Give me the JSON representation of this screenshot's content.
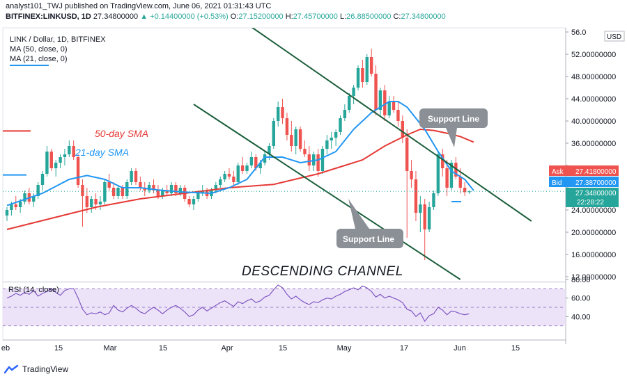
{
  "header": {
    "line1": "analyst101_TWJ published on TradingView.com, June 06, 2021 01:31:43 UTC",
    "symbol": "BITFINEX:LINKUSD, 1D",
    "last": "27.34800000",
    "change": "+0.14400000 (+0.53%)",
    "o_label": "O:",
    "o": "27.15200000",
    "h_label": "H:",
    "h": "27.45700000",
    "l_label": "L:",
    "l": "26.88500000",
    "c_label": "C:",
    "c": "27.34800000"
  },
  "legend": {
    "title": "LINK / Dollar, 1D, BITFINEX",
    "ma50": "MA (50, close, 0)",
    "ma21": "MA (21, close, 0)",
    "rsi": "RSI (14, close)"
  },
  "annotations": {
    "sma50": "50-day SMA",
    "sma21": "21-day SMA",
    "support_upper": "Support Line",
    "support_lower": "Support Line",
    "channel": "DESCENDING CHANNEL"
  },
  "price_tags": {
    "ask_label": "Ask",
    "ask": "27.41800000",
    "bid_label": "Bid",
    "bid": "27.38700000",
    "last": "27.34800000",
    "countdown": "22:28:22",
    "currency": "USD"
  },
  "footer": {
    "brand": "TradingView"
  },
  "colors": {
    "up": "#26a69a",
    "down": "#ef5350",
    "ma50": "#e53935",
    "ma21": "#2196f3",
    "rsi": "#7e57c2",
    "rsi_band": "#e9dcf7",
    "trend": "#1b5e3b",
    "callout": "#8a9096"
  },
  "chart_data": [
    {
      "type": "candlestick",
      "title": "LINK / Dollar, 1D, BITFINEX",
      "ylim": [
        12,
        56
      ],
      "y_ticks": [
        12,
        16,
        20,
        24,
        28,
        32,
        36,
        40,
        44,
        48,
        52,
        56
      ],
      "y_tick_labels": [
        "12.00000000",
        "16.00000000",
        "20.00000000",
        "24.00000000",
        "",
        "",
        "36.00000000",
        "40.00000000",
        "44.00000000",
        "48.00000000",
        "52.00000000",
        "56.0"
      ],
      "x_ticks": [
        "eb",
        "15",
        "Mar",
        "15",
        "Apr",
        "15",
        "May",
        "17",
        "Jun",
        "15"
      ],
      "candles": [
        {
          "o": 23.0,
          "h": 24.5,
          "l": 22.0,
          "c": 24.0
        },
        {
          "o": 24.0,
          "h": 25.5,
          "l": 23.0,
          "c": 25.0
        },
        {
          "o": 25.0,
          "h": 26.5,
          "l": 24.0,
          "c": 24.5
        },
        {
          "o": 24.5,
          "h": 26.0,
          "l": 23.5,
          "c": 25.5
        },
        {
          "o": 25.5,
          "h": 27.5,
          "l": 25.0,
          "c": 27.0
        },
        {
          "o": 27.0,
          "h": 28.0,
          "l": 25.0,
          "c": 25.5
        },
        {
          "o": 25.5,
          "h": 27.0,
          "l": 24.5,
          "c": 26.5
        },
        {
          "o": 26.5,
          "h": 29.0,
          "l": 26.0,
          "c": 28.5
        },
        {
          "o": 28.5,
          "h": 31.0,
          "l": 27.5,
          "c": 30.5
        },
        {
          "o": 30.5,
          "h": 35.5,
          "l": 30.0,
          "c": 34.5
        },
        {
          "o": 34.5,
          "h": 35.0,
          "l": 31.0,
          "c": 31.5
        },
        {
          "o": 31.5,
          "h": 33.0,
          "l": 30.0,
          "c": 32.5
        },
        {
          "o": 32.5,
          "h": 34.0,
          "l": 31.5,
          "c": 33.5
        },
        {
          "o": 33.5,
          "h": 35.0,
          "l": 32.0,
          "c": 34.0
        },
        {
          "o": 34.0,
          "h": 36.5,
          "l": 33.5,
          "c": 35.5
        },
        {
          "o": 35.5,
          "h": 36.5,
          "l": 33.0,
          "c": 33.5
        },
        {
          "o": 33.5,
          "h": 34.0,
          "l": 28.0,
          "c": 28.5
        },
        {
          "o": 28.5,
          "h": 29.5,
          "l": 21.0,
          "c": 26.5
        },
        {
          "o": 26.5,
          "h": 28.0,
          "l": 23.5,
          "c": 24.5
        },
        {
          "o": 24.5,
          "h": 26.5,
          "l": 23.5,
          "c": 26.0
        },
        {
          "o": 26.0,
          "h": 27.0,
          "l": 24.0,
          "c": 25.0
        },
        {
          "o": 25.0,
          "h": 26.5,
          "l": 24.0,
          "c": 25.5
        },
        {
          "o": 25.5,
          "h": 29.5,
          "l": 25.0,
          "c": 29.0
        },
        {
          "o": 29.0,
          "h": 30.5,
          "l": 27.5,
          "c": 28.0
        },
        {
          "o": 28.0,
          "h": 29.0,
          "l": 26.0,
          "c": 26.5
        },
        {
          "o": 26.5,
          "h": 28.5,
          "l": 26.0,
          "c": 28.0
        },
        {
          "o": 28.0,
          "h": 28.5,
          "l": 26.0,
          "c": 26.5
        },
        {
          "o": 26.5,
          "h": 29.5,
          "l": 26.0,
          "c": 29.0
        },
        {
          "o": 29.0,
          "h": 31.5,
          "l": 28.5,
          "c": 31.0
        },
        {
          "o": 31.0,
          "h": 31.5,
          "l": 28.5,
          "c": 29.0
        },
        {
          "o": 29.0,
          "h": 30.0,
          "l": 27.5,
          "c": 28.0
        },
        {
          "o": 28.0,
          "h": 29.0,
          "l": 26.5,
          "c": 27.5
        },
        {
          "o": 27.5,
          "h": 29.0,
          "l": 27.0,
          "c": 28.5
        },
        {
          "o": 28.5,
          "h": 29.5,
          "l": 27.0,
          "c": 27.5
        },
        {
          "o": 27.5,
          "h": 28.5,
          "l": 26.0,
          "c": 26.5
        },
        {
          "o": 26.5,
          "h": 28.0,
          "l": 26.0,
          "c": 27.5
        },
        {
          "o": 27.5,
          "h": 28.5,
          "l": 26.5,
          "c": 27.0
        },
        {
          "o": 27.0,
          "h": 29.0,
          "l": 26.5,
          "c": 28.5
        },
        {
          "o": 28.5,
          "h": 29.0,
          "l": 26.5,
          "c": 27.0
        },
        {
          "o": 27.0,
          "h": 28.5,
          "l": 26.5,
          "c": 28.0
        },
        {
          "o": 28.0,
          "h": 28.5,
          "l": 25.5,
          "c": 26.0
        },
        {
          "o": 26.0,
          "h": 26.5,
          "l": 24.5,
          "c": 25.0
        },
        {
          "o": 25.0,
          "h": 26.5,
          "l": 24.0,
          "c": 26.0
        },
        {
          "o": 26.0,
          "h": 27.5,
          "l": 25.5,
          "c": 27.0
        },
        {
          "o": 27.0,
          "h": 28.5,
          "l": 26.5,
          "c": 27.5
        },
        {
          "o": 27.5,
          "h": 28.0,
          "l": 26.0,
          "c": 26.5
        },
        {
          "o": 26.5,
          "h": 28.0,
          "l": 26.0,
          "c": 27.5
        },
        {
          "o": 27.5,
          "h": 29.0,
          "l": 27.0,
          "c": 28.5
        },
        {
          "o": 28.5,
          "h": 30.0,
          "l": 28.0,
          "c": 29.5
        },
        {
          "o": 29.5,
          "h": 31.0,
          "l": 29.0,
          "c": 30.5
        },
        {
          "o": 30.5,
          "h": 31.5,
          "l": 29.5,
          "c": 30.0
        },
        {
          "o": 30.0,
          "h": 31.0,
          "l": 28.5,
          "c": 29.0
        },
        {
          "o": 29.0,
          "h": 32.5,
          "l": 28.5,
          "c": 32.0
        },
        {
          "o": 32.0,
          "h": 33.5,
          "l": 30.5,
          "c": 31.0
        },
        {
          "o": 31.0,
          "h": 32.5,
          "l": 30.5,
          "c": 32.0
        },
        {
          "o": 32.0,
          "h": 34.5,
          "l": 31.5,
          "c": 33.5
        },
        {
          "o": 33.5,
          "h": 34.0,
          "l": 31.0,
          "c": 31.5
        },
        {
          "o": 31.5,
          "h": 33.0,
          "l": 30.5,
          "c": 32.5
        },
        {
          "o": 32.5,
          "h": 34.5,
          "l": 32.0,
          "c": 34.0
        },
        {
          "o": 34.0,
          "h": 36.0,
          "l": 33.0,
          "c": 35.5
        },
        {
          "o": 35.5,
          "h": 40.5,
          "l": 35.0,
          "c": 40.0
        },
        {
          "o": 40.0,
          "h": 43.5,
          "l": 39.0,
          "c": 42.5
        },
        {
          "o": 42.5,
          "h": 44.0,
          "l": 39.5,
          "c": 40.5
        },
        {
          "o": 40.5,
          "h": 41.5,
          "l": 36.5,
          "c": 37.5
        },
        {
          "o": 37.5,
          "h": 40.0,
          "l": 34.5,
          "c": 35.5
        },
        {
          "o": 35.5,
          "h": 39.0,
          "l": 34.0,
          "c": 38.5
        },
        {
          "o": 38.5,
          "h": 39.0,
          "l": 34.5,
          "c": 35.0
        },
        {
          "o": 35.0,
          "h": 36.5,
          "l": 33.5,
          "c": 34.0
        },
        {
          "o": 34.0,
          "h": 35.5,
          "l": 31.0,
          "c": 32.0
        },
        {
          "o": 32.0,
          "h": 34.5,
          "l": 31.0,
          "c": 34.0
        },
        {
          "o": 34.0,
          "h": 35.0,
          "l": 30.0,
          "c": 31.0
        },
        {
          "o": 31.0,
          "h": 35.5,
          "l": 30.5,
          "c": 35.0
        },
        {
          "o": 35.0,
          "h": 37.5,
          "l": 34.0,
          "c": 36.5
        },
        {
          "o": 36.5,
          "h": 38.0,
          "l": 35.0,
          "c": 37.0
        },
        {
          "o": 37.0,
          "h": 38.5,
          "l": 35.5,
          "c": 38.0
        },
        {
          "o": 38.0,
          "h": 41.0,
          "l": 37.5,
          "c": 40.5
        },
        {
          "o": 40.5,
          "h": 43.0,
          "l": 40.0,
          "c": 42.0
        },
        {
          "o": 42.0,
          "h": 45.0,
          "l": 41.5,
          "c": 44.5
        },
        {
          "o": 44.5,
          "h": 46.5,
          "l": 43.0,
          "c": 46.0
        },
        {
          "o": 46.0,
          "h": 50.0,
          "l": 45.5,
          "c": 49.5
        },
        {
          "o": 49.5,
          "h": 51.0,
          "l": 46.0,
          "c": 47.0
        },
        {
          "o": 47.0,
          "h": 52.0,
          "l": 46.5,
          "c": 51.5
        },
        {
          "o": 51.5,
          "h": 53.0,
          "l": 48.0,
          "c": 48.5
        },
        {
          "o": 48.5,
          "h": 50.0,
          "l": 41.0,
          "c": 42.0
        },
        {
          "o": 42.0,
          "h": 46.0,
          "l": 41.0,
          "c": 45.5
        },
        {
          "o": 45.5,
          "h": 46.5,
          "l": 40.0,
          "c": 41.0
        },
        {
          "o": 41.0,
          "h": 44.5,
          "l": 40.5,
          "c": 43.5
        },
        {
          "o": 43.5,
          "h": 44.5,
          "l": 41.5,
          "c": 42.0
        },
        {
          "o": 42.0,
          "h": 43.5,
          "l": 39.0,
          "c": 40.0
        },
        {
          "o": 40.0,
          "h": 41.0,
          "l": 36.0,
          "c": 37.0
        },
        {
          "o": 37.0,
          "h": 38.5,
          "l": 19.0,
          "c": 31.0
        },
        {
          "o": 31.0,
          "h": 33.0,
          "l": 28.0,
          "c": 29.5
        },
        {
          "o": 29.5,
          "h": 31.0,
          "l": 22.0,
          "c": 23.5
        },
        {
          "o": 23.5,
          "h": 26.5,
          "l": 20.0,
          "c": 25.0
        },
        {
          "o": 25.0,
          "h": 26.0,
          "l": 15.0,
          "c": 20.5
        },
        {
          "o": 20.5,
          "h": 25.5,
          "l": 20.0,
          "c": 24.5
        },
        {
          "o": 24.5,
          "h": 27.5,
          "l": 24.0,
          "c": 27.0
        },
        {
          "o": 27.0,
          "h": 34.5,
          "l": 26.5,
          "c": 34.0
        },
        {
          "o": 34.0,
          "h": 35.0,
          "l": 30.0,
          "c": 31.5
        },
        {
          "o": 31.5,
          "h": 33.0,
          "l": 26.5,
          "c": 28.0
        },
        {
          "o": 28.0,
          "h": 33.0,
          "l": 27.5,
          "c": 32.5
        },
        {
          "o": 32.5,
          "h": 33.5,
          "l": 29.5,
          "c": 30.0
        },
        {
          "o": 30.0,
          "h": 31.5,
          "l": 27.0,
          "c": 28.0
        },
        {
          "o": 28.0,
          "h": 29.0,
          "l": 26.5,
          "c": 27.2
        },
        {
          "o": 27.2,
          "h": 27.5,
          "l": 26.9,
          "c": 27.35
        }
      ],
      "ma50": [
        [
          0,
          20.5
        ],
        [
          10,
          22.5
        ],
        [
          20,
          24.5
        ],
        [
          30,
          26.0
        ],
        [
          40,
          27.0
        ],
        [
          50,
          28.0
        ],
        [
          60,
          28.6
        ],
        [
          70,
          30.5
        ],
        [
          80,
          33.0
        ],
        [
          85,
          35.5
        ],
        [
          90,
          37.5
        ],
        [
          93,
          38.5
        ],
        [
          96,
          38.3
        ],
        [
          99,
          37.8
        ],
        [
          102,
          37.2
        ],
        [
          105,
          36.2
        ]
      ],
      "ma21": [
        [
          0,
          24.8
        ],
        [
          8,
          27.0
        ],
        [
          14,
          29.5
        ],
        [
          18,
          30.2
        ],
        [
          22,
          29.5
        ],
        [
          26,
          28.0
        ],
        [
          30,
          28.0
        ],
        [
          34,
          27.6
        ],
        [
          40,
          27.2
        ],
        [
          46,
          27.0
        ],
        [
          50,
          28.0
        ],
        [
          54,
          29.5
        ],
        [
          58,
          33.5
        ],
        [
          62,
          33.5
        ],
        [
          66,
          32.5
        ],
        [
          70,
          33.0
        ],
        [
          74,
          34.5
        ],
        [
          78,
          38.5
        ],
        [
          82,
          41.5
        ],
        [
          86,
          43.5
        ],
        [
          88,
          43.5
        ],
        [
          90,
          42.5
        ],
        [
          94,
          38.5
        ],
        [
          97,
          34.5
        ],
        [
          100,
          31.0
        ],
        [
          103,
          29.5
        ],
        [
          105,
          27.5
        ]
      ],
      "trend_lines": [
        {
          "from": [
            53,
            58
          ],
          "to": [
            118,
            22
          ]
        },
        {
          "from": [
            42,
            43
          ],
          "to": [
            102,
            11.5
          ]
        }
      ]
    },
    {
      "type": "line",
      "title": "RSI (14, close)",
      "ylim": [
        20,
        80
      ],
      "y_ticks": [
        40,
        60,
        80
      ],
      "y_tick_labels": [
        "40.00",
        "60.00",
        "80.00"
      ],
      "bands": [
        30,
        50,
        70
      ],
      "values": [
        60,
        62,
        65,
        63,
        66,
        64,
        68,
        62,
        65,
        67,
        70,
        66,
        63,
        68,
        70,
        70,
        60,
        48,
        42,
        44,
        43,
        45,
        42,
        44,
        52,
        47,
        45,
        49,
        52,
        49,
        45,
        43,
        47,
        50,
        47,
        43,
        47,
        50,
        52,
        49,
        45,
        40,
        42,
        47,
        50,
        46,
        49,
        52,
        55,
        57,
        54,
        51,
        56,
        54,
        57,
        59,
        55,
        57,
        61,
        63,
        69,
        74,
        71,
        64,
        59,
        62,
        58,
        55,
        53,
        56,
        55,
        58,
        60,
        59,
        62,
        64,
        67,
        69,
        71,
        69,
        73,
        71,
        67,
        61,
        64,
        60,
        62,
        60,
        58,
        55,
        48,
        46,
        40,
        44,
        35,
        41,
        43,
        50,
        47,
        42,
        46,
        45,
        43,
        42,
        43
      ]
    }
  ]
}
